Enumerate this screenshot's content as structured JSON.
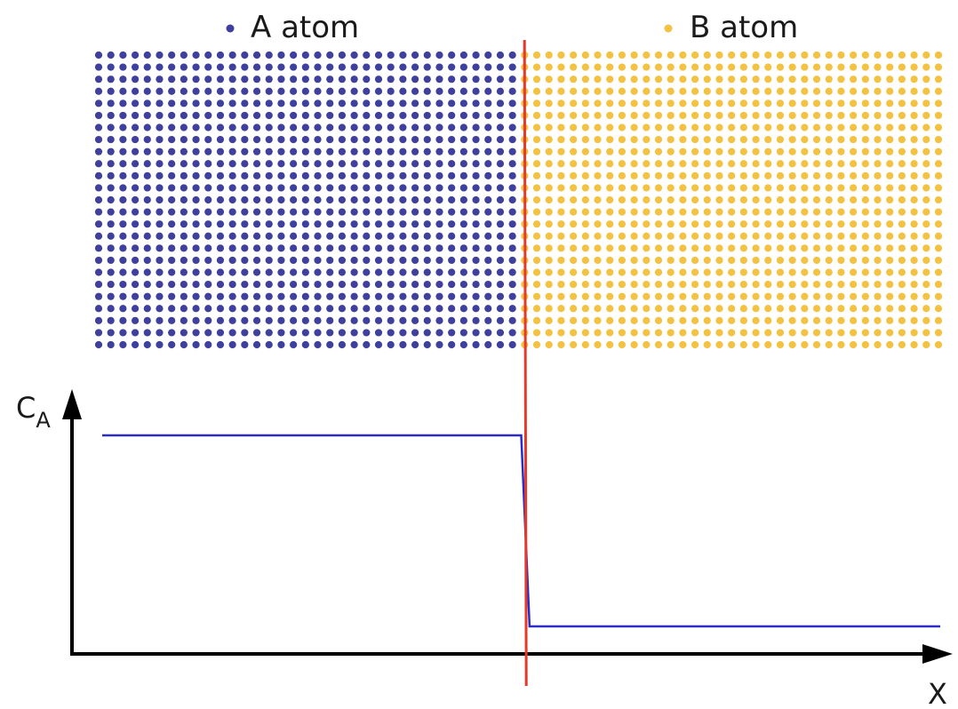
{
  "legend": {
    "a_label": "A atom",
    "b_label": "B atom"
  },
  "axes": {
    "y_label": "C",
    "y_subscript": "A",
    "x_label": "X"
  },
  "colors": {
    "a_atom": "#3f3f9e",
    "b_atom": "#f4c243",
    "interface_line": "#e53a2a",
    "profile_line": "#2b2bc8",
    "axis": "#000000"
  },
  "chart_data": {
    "type": "line",
    "title": "",
    "xlabel": "X",
    "ylabel": "C_A",
    "series": [
      {
        "x": [
          0.0,
          0.5,
          0.51,
          1.0
        ],
        "y": [
          1.0,
          1.0,
          0.0,
          0.0
        ]
      }
    ],
    "interface_x": 0.505
  }
}
